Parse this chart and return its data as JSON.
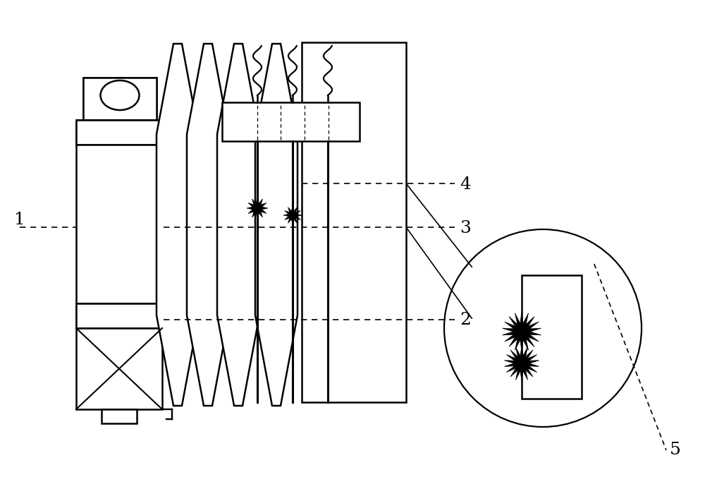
{
  "bg_color": "#ffffff",
  "line_color": "#000000",
  "fig_width": 10.0,
  "fig_height": 7.1,
  "dpi": 100,
  "label_fs": 18
}
